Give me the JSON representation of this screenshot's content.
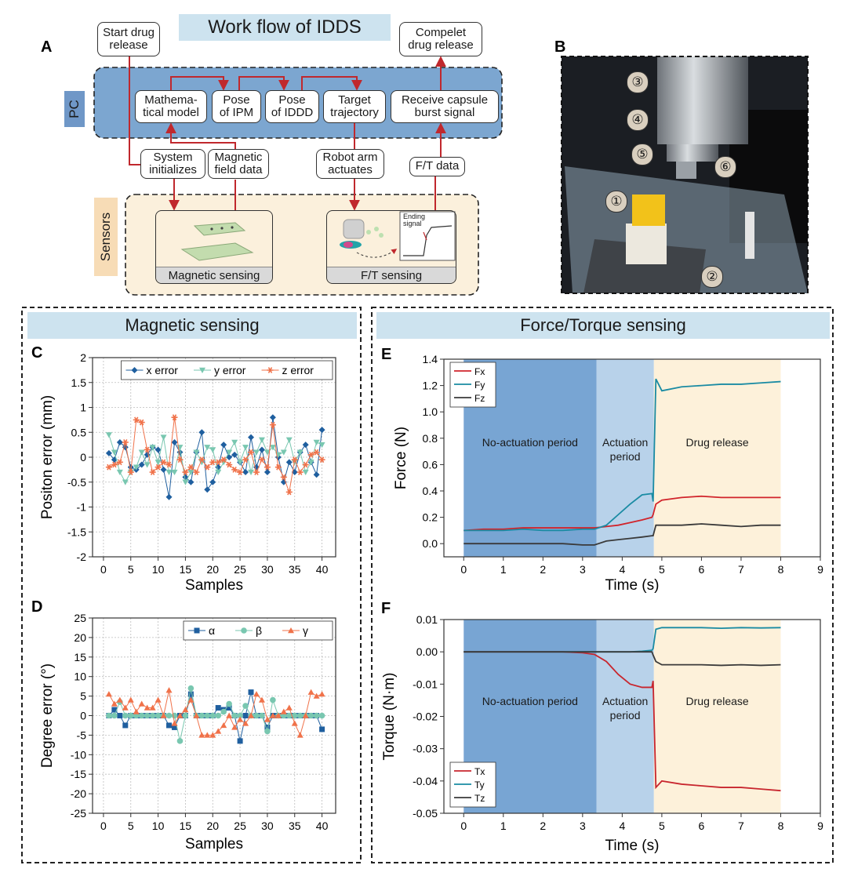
{
  "panel_labels": [
    "A",
    "B",
    "C",
    "D",
    "E",
    "F"
  ],
  "diagram": {
    "title": "Work flow of IDDS",
    "start": "Start drug\nrelease",
    "complete": "Compelet\ndrug release",
    "pc_label": "PC",
    "sensors_label": "Sensors",
    "pc_steps": [
      "Mathema-\ntical model",
      "Pose\nof IPM",
      "Pose\nof IDDD",
      "Target\ntrajectory",
      "Receive capsule\nburst signal"
    ],
    "links": [
      "System\ninitializes",
      "Magnetic\nfield data",
      "Robot arm\nactuates",
      "F/T data"
    ],
    "sensors": [
      "Magnetic sensing",
      "F/T sensing"
    ],
    "inset_label": "Ending\nsignal"
  },
  "photo": {
    "markers": [
      "③",
      "④",
      "⑤",
      "⑥",
      "①",
      "②"
    ]
  },
  "sections": [
    "Magnetic sensing",
    "Force/Torque sensing"
  ],
  "chart_data": [
    {
      "type": "line",
      "xlabel": "Samples",
      "ylabel": "Positon error (mm)",
      "x": [
        1,
        2,
        3,
        4,
        5,
        6,
        7,
        8,
        9,
        10,
        11,
        12,
        13,
        14,
        15,
        16,
        17,
        18,
        19,
        20,
        21,
        22,
        23,
        24,
        25,
        26,
        27,
        28,
        29,
        30,
        31,
        32,
        33,
        34,
        35,
        36,
        37,
        38,
        39,
        40
      ],
      "xlim": [
        -2,
        42.5
      ],
      "xticks": [
        0,
        5,
        10,
        15,
        20,
        25,
        30,
        35,
        40
      ],
      "ylim": [
        -2,
        2
      ],
      "yticks": [
        2,
        1.5,
        1,
        0.5,
        0,
        -0.5,
        -1,
        -1.5,
        -2
      ],
      "grid": true,
      "legend": "top-right",
      "series": [
        {
          "name": "x error",
          "color": "#1f5f9f",
          "marker": "diamond",
          "values": [
            0.08,
            -0.05,
            0.3,
            0.2,
            -0.2,
            -0.25,
            -0.15,
            0.05,
            0.2,
            0.15,
            -0.25,
            -0.8,
            0.3,
            0.1,
            -0.4,
            -0.5,
            0.1,
            0.5,
            -0.65,
            -0.5,
            -0.2,
            0.25,
            0,
            0.05,
            -0.1,
            -0.3,
            0.4,
            -0.2,
            0.15,
            -0.3,
            0.8,
            0,
            -0.5,
            -0.1,
            -0.3,
            0.1,
            0.25,
            -0.1,
            -0.35,
            0.55
          ]
        },
        {
          "name": "y error",
          "color": "#79c7b0",
          "marker": "triangle-down",
          "values": [
            0.45,
            0.1,
            -0.3,
            -0.5,
            -0.3,
            -0.2,
            0.1,
            -0.15,
            0.2,
            -0.1,
            0.4,
            -0.3,
            -0.3,
            0.2,
            -0.5,
            -0.3,
            0.1,
            -0.1,
            0.2,
            0.15,
            -0.3,
            -0.1,
            0.1,
            0.3,
            -0.1,
            0.2,
            -0.3,
            0.1,
            0.35,
            0.1,
            0.2,
            0.05,
            0.1,
            0.35,
            -0.1,
            0.1,
            -0.3,
            -0.1,
            0.3,
            0.25
          ]
        },
        {
          "name": "z error",
          "color": "#f0724a",
          "marker": "star",
          "values": [
            -0.2,
            -0.15,
            -0.1,
            0.3,
            -0.3,
            0.75,
            0.7,
            0.15,
            -0.3,
            -0.2,
            -0.1,
            -0.15,
            0.8,
            -0.05,
            -0.3,
            -0.2,
            -0.3,
            -0.05,
            -0.2,
            -0.1,
            -0.1,
            -0.05,
            -0.15,
            -0.25,
            -0.3,
            -0.05,
            0.1,
            -0.3,
            -0.05,
            -0.2,
            0.65,
            -0.2,
            -0.4,
            -0.7,
            -0.05,
            -0.3,
            -0.15,
            0.05,
            0.1,
            -0.05
          ]
        }
      ]
    },
    {
      "type": "line",
      "xlabel": "Samples",
      "ylabel": "Degree error (°)",
      "x": [
        1,
        2,
        3,
        4,
        5,
        6,
        7,
        8,
        9,
        10,
        11,
        12,
        13,
        14,
        15,
        16,
        17,
        18,
        19,
        20,
        21,
        22,
        23,
        24,
        25,
        26,
        27,
        28,
        29,
        30,
        31,
        32,
        33,
        34,
        35,
        36,
        37,
        38,
        39,
        40
      ],
      "xlim": [
        -2,
        42.5
      ],
      "xticks": [
        0,
        5,
        10,
        15,
        20,
        25,
        30,
        35,
        40
      ],
      "ylim": [
        -25,
        25
      ],
      "yticks": [
        25,
        20,
        15,
        10,
        5,
        0,
        -5,
        -10,
        -15,
        -20,
        -25
      ],
      "grid": true,
      "legend": "top-right",
      "series": [
        {
          "name": "α",
          "color": "#1f5f9f",
          "marker": "square",
          "values": [
            0,
            1.5,
            0,
            -2.5,
            0,
            0,
            0,
            0,
            0,
            0,
            0,
            -2.5,
            -3,
            0,
            0,
            5.5,
            0,
            0,
            0,
            0,
            2,
            1.5,
            2,
            0,
            -6.5,
            0,
            6,
            0,
            0,
            -3,
            0,
            0,
            0,
            0,
            0,
            0,
            0,
            0,
            0,
            -3.5
          ]
        },
        {
          "name": "β",
          "color": "#79c7b0",
          "marker": "circle",
          "values": [
            0,
            0,
            3.5,
            0,
            0,
            0,
            0,
            0,
            0,
            0,
            0,
            0,
            0,
            -6.5,
            0,
            7,
            0,
            0,
            0,
            0,
            0,
            1,
            3,
            0,
            0,
            2.5,
            0,
            0,
            0,
            -4,
            4,
            0,
            0,
            0,
            0,
            0,
            0,
            0,
            0,
            0
          ]
        },
        {
          "name": "γ",
          "color": "#f0724a",
          "marker": "triangle",
          "values": [
            5.5,
            3,
            4,
            2,
            4,
            1,
            3,
            2,
            2,
            4,
            0,
            6.5,
            -2,
            0,
            1.5,
            4,
            0,
            -5,
            -5,
            -5,
            -4,
            -2.5,
            0,
            -3,
            -1,
            -2,
            0,
            5.5,
            4,
            -1,
            0,
            0,
            1,
            2,
            -2,
            -5,
            0,
            6,
            5,
            5.5
          ]
        }
      ]
    },
    {
      "type": "line",
      "xlabel": "Time (s)",
      "ylabel": "Force (N)",
      "x": [
        0,
        0.5,
        1,
        1.5,
        2,
        2.5,
        3,
        3.3,
        3.6,
        3.9,
        4.2,
        4.5,
        4.75,
        4.78,
        4.85,
        5,
        5.5,
        6,
        6.5,
        7,
        7.5,
        8
      ],
      "xlim": [
        -0.5,
        9
      ],
      "xticks": [
        0,
        1,
        2,
        3,
        4,
        5,
        6,
        7,
        8,
        9
      ],
      "ylim": [
        -0.1,
        1.4
      ],
      "yticks": [
        {
          "value": 0,
          "label": "0.0"
        },
        0.2,
        0.4,
        0.6,
        0.8,
        {
          "value": 1,
          "label": "1.0"
        },
        1.2,
        1.4
      ],
      "grid": false,
      "legend": "top-left",
      "regions": [
        {
          "label": "No-actuation period",
          "start": 0,
          "end": 3.35,
          "color": "#78a5d3"
        },
        {
          "label": "Actuation period",
          "start": 3.35,
          "end": 4.8,
          "color": "#b8d2ea"
        },
        {
          "label": "Drug release",
          "start": 4.8,
          "end": 8,
          "color": "#fdf1da"
        }
      ],
      "series": [
        {
          "name": "Fx",
          "color": "#d1242b",
          "values": [
            0.1,
            0.11,
            0.11,
            0.12,
            0.12,
            0.12,
            0.12,
            0.12,
            0.13,
            0.14,
            0.16,
            0.18,
            0.2,
            0.22,
            0.3,
            0.33,
            0.35,
            0.36,
            0.35,
            0.35,
            0.35,
            0.35
          ]
        },
        {
          "name": "Fy",
          "color": "#1a8ba3",
          "values": [
            0.1,
            0.1,
            0.1,
            0.11,
            0.1,
            0.1,
            0.11,
            0.11,
            0.14,
            0.22,
            0.3,
            0.37,
            0.38,
            0.32,
            1.25,
            1.16,
            1.19,
            1.2,
            1.21,
            1.21,
            1.22,
            1.23
          ]
        },
        {
          "name": "Fz",
          "color": "#3a3a3a",
          "values": [
            0,
            0,
            0,
            0,
            0,
            0,
            -0.01,
            -0.01,
            0.02,
            0.03,
            0.04,
            0.05,
            0.06,
            0.06,
            0.14,
            0.14,
            0.14,
            0.15,
            0.14,
            0.13,
            0.14,
            0.14
          ]
        }
      ]
    },
    {
      "type": "line",
      "xlabel": "Time (s)",
      "ylabel": "Torque (N·m)",
      "x": [
        0,
        0.5,
        1,
        1.5,
        2,
        2.5,
        3,
        3.3,
        3.6,
        3.9,
        4.2,
        4.5,
        4.75,
        4.78,
        4.85,
        5,
        5.5,
        6,
        6.5,
        7,
        7.5,
        8
      ],
      "xlim": [
        -0.5,
        9
      ],
      "xticks": [
        0,
        1,
        2,
        3,
        4,
        5,
        6,
        7,
        8,
        9
      ],
      "ylim": [
        -0.05,
        0.01
      ],
      "yticks": [
        0.01,
        {
          "value": 0,
          "label": "0.00"
        },
        -0.01,
        -0.02,
        -0.03,
        -0.04,
        -0.05
      ],
      "grid": false,
      "legend": "bottom-left",
      "regions": [
        {
          "label": "No-actuation period",
          "start": 0,
          "end": 3.35,
          "color": "#78a5d3"
        },
        {
          "label": "Actuation period",
          "start": 3.35,
          "end": 4.8,
          "color": "#b8d2ea"
        },
        {
          "label": "Drug release",
          "start": 4.8,
          "end": 8,
          "color": "#fdf1da"
        }
      ],
      "series": [
        {
          "name": "Tx",
          "color": "#c8262e",
          "values": [
            0,
            0,
            0,
            0,
            0,
            0,
            -0.0003,
            -0.0008,
            -0.003,
            -0.007,
            -0.01,
            -0.011,
            -0.011,
            -0.009,
            -0.042,
            -0.04,
            -0.041,
            -0.0415,
            -0.042,
            -0.042,
            -0.0425,
            -0.043
          ]
        },
        {
          "name": "Ty",
          "color": "#1a8ba3",
          "values": [
            0,
            0,
            0,
            0,
            0,
            0,
            0,
            0,
            0,
            0,
            0,
            0.0002,
            0.0005,
            0.001,
            0.007,
            0.0075,
            0.0075,
            0.0075,
            0.0073,
            0.0075,
            0.0074,
            0.0075
          ]
        },
        {
          "name": "Tz",
          "color": "#3a3a3a",
          "values": [
            0,
            0,
            0,
            0,
            0,
            0,
            0,
            0,
            0,
            0,
            0,
            0,
            0,
            -0.001,
            -0.003,
            -0.004,
            -0.004,
            -0.004,
            -0.0042,
            -0.004,
            -0.0042,
            -0.004
          ]
        }
      ]
    }
  ]
}
